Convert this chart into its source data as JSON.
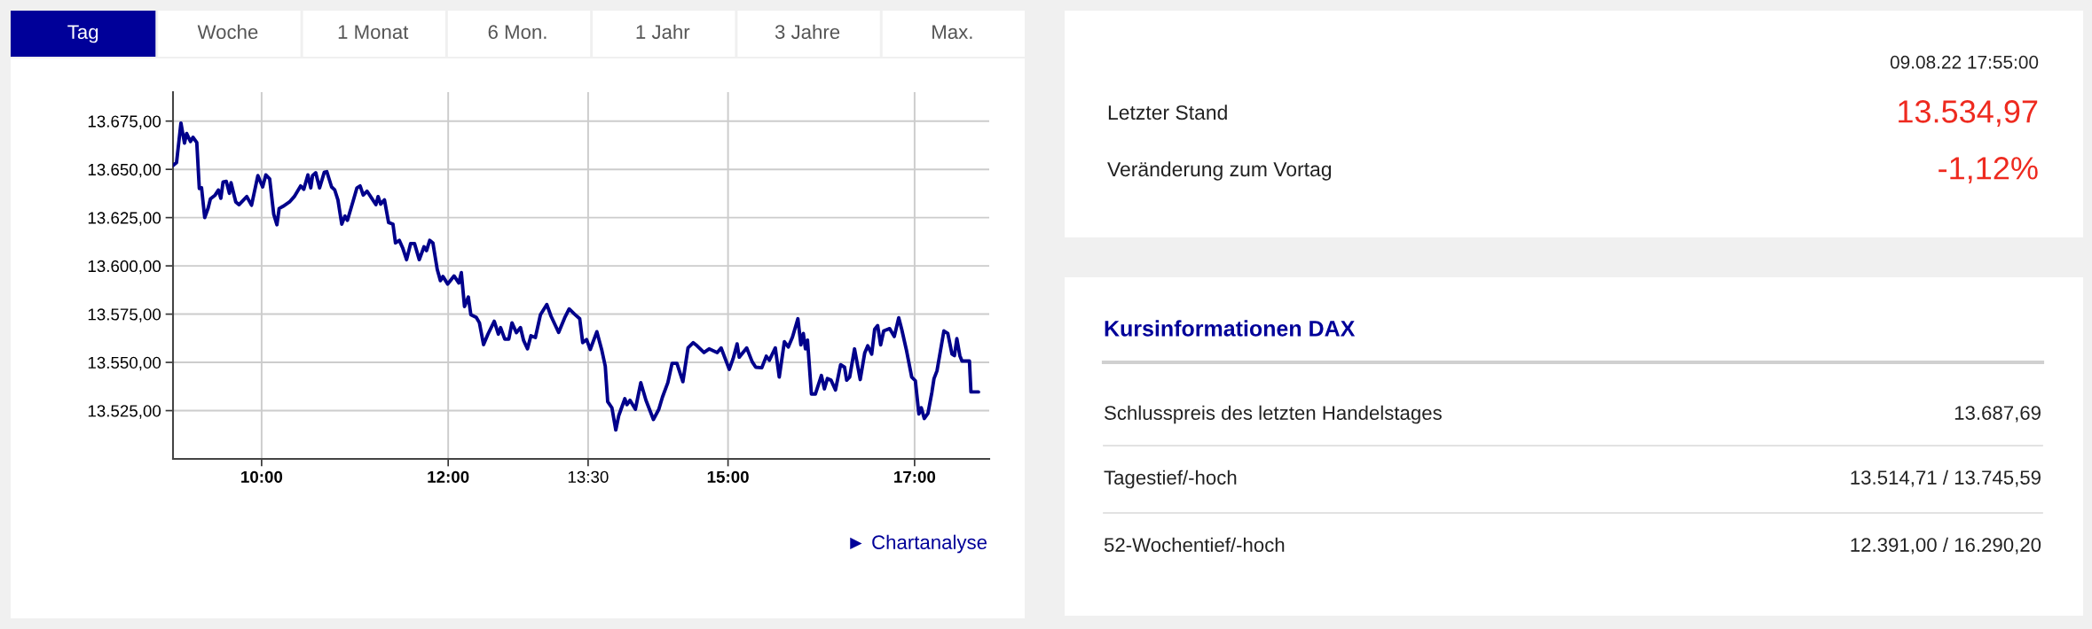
{
  "chart_data": [
    {
      "type": "other",
      "annotations": [
        "Tag",
        "Woche",
        "1 Monat",
        "6 Mon.",
        "1 Jahr",
        "3 Jahre",
        "Max."
      ]
    },
    {
      "type": "line",
      "x": [
        9.054,
        9.088,
        9.135,
        9.173,
        9.196,
        9.237,
        9.264,
        9.305,
        9.332,
        9.356,
        9.39,
        9.427,
        9.451,
        9.502,
        9.536,
        9.563,
        9.587,
        9.621,
        9.655,
        9.672,
        9.723,
        9.757,
        9.841,
        9.892,
        9.96,
        10.011,
        10.045,
        10.086,
        10.13,
        10.164,
        10.188,
        10.231,
        10.299,
        10.35,
        10.418,
        10.452,
        10.496,
        10.527,
        10.546,
        10.58,
        10.621,
        10.672,
        10.699,
        10.75,
        10.784,
        10.818,
        10.859,
        10.893,
        10.92,
        10.978,
        11.022,
        11.056,
        11.089,
        11.13,
        11.181,
        11.225,
        11.249,
        11.276,
        11.317,
        11.361,
        11.408,
        11.435,
        11.476,
        11.514,
        11.554,
        11.598,
        11.639,
        11.69,
        11.741,
        11.768,
        11.802,
        11.836,
        11.883,
        11.917,
        11.944,
        11.995,
        12.063,
        12.114,
        12.141,
        12.175,
        12.216,
        12.243,
        12.301,
        12.335,
        12.379,
        12.426,
        12.494,
        12.538,
        12.562,
        12.606,
        12.65,
        12.684,
        12.731,
        12.775,
        12.809,
        12.85,
        12.887,
        12.935,
        12.989,
        13.057,
        13.103,
        13.184,
        13.248,
        13.297,
        13.355,
        13.41,
        13.442,
        13.484,
        13.523,
        13.594,
        13.645,
        13.684,
        13.71,
        13.755,
        13.797,
        13.829,
        13.894,
        13.916,
        13.949,
        14.007,
        14.065,
        14.12,
        14.2,
        14.258,
        14.297,
        14.355,
        14.4,
        14.452,
        14.516,
        14.571,
        14.626,
        14.668,
        14.742,
        14.797,
        14.884,
        14.926,
        15.013,
        15.055,
        15.097,
        15.12,
        15.2,
        15.259,
        15.297,
        15.362,
        15.41,
        15.443,
        15.507,
        15.549,
        15.604,
        15.646,
        15.691,
        15.749,
        15.781,
        15.807,
        15.83,
        15.852,
        15.894,
        15.936,
        16.001,
        16.033,
        16.065,
        16.104,
        16.152,
        16.207,
        16.249,
        16.272,
        16.304,
        16.356,
        16.417,
        16.465,
        16.498,
        16.54,
        16.572,
        16.604,
        16.636,
        16.669,
        16.733,
        16.782,
        16.83,
        16.862,
        16.911,
        16.969,
        17.008,
        17.046,
        17.072,
        17.104,
        17.143,
        17.185,
        17.208,
        17.24,
        17.314,
        17.356,
        17.401,
        17.427,
        17.453,
        17.485,
        17.508,
        17.588,
        17.604,
        17.685
      ],
      "series": [
        {
          "color": "#00008b",
          "values": [
            13652.2,
            13653.5,
            13674,
            13663.6,
            13668.6,
            13664.4,
            13666.6,
            13663.9,
            13640.1,
            13640.4,
            13625,
            13630,
            13634.7,
            13636.7,
            13639.3,
            13635,
            13643.5,
            13643.8,
            13637.6,
            13643.1,
            13633.1,
            13631.7,
            13635.9,
            13631.4,
            13646.8,
            13640.9,
            13647.1,
            13645.1,
            13626.7,
            13621.3,
            13629.7,
            13630.9,
            13633.1,
            13635.9,
            13641.4,
            13639.7,
            13647.1,
            13640.4,
            13646.8,
            13648.2,
            13640.4,
            13648.5,
            13648.8,
            13640.9,
            13639.3,
            13634.2,
            13621.6,
            13625.8,
            13623.6,
            13633.1,
            13640.4,
            13641.4,
            13636.7,
            13638.7,
            13635,
            13631.7,
            13635.9,
            13632,
            13634.2,
            13622.5,
            13621.6,
            13611.9,
            13613.2,
            13609.1,
            13603.2,
            13611.6,
            13611.6,
            13603.2,
            13609.9,
            13607.9,
            13613.2,
            13611.9,
            13598.1,
            13592.3,
            13594.5,
            13590.6,
            13594.8,
            13591.1,
            13596.5,
            13578.9,
            13583.9,
            13574.7,
            13573.3,
            13570.5,
            13559.2,
            13564.6,
            13571.3,
            13564.6,
            13568,
            13562.1,
            13562.1,
            13570.5,
            13565.4,
            13568,
            13561.3,
            13557,
            13563.8,
            13562.9,
            13574.7,
            13580,
            13573.9,
            13565.5,
            13573,
            13577.7,
            13575,
            13572.6,
            13560.2,
            13561.8,
            13556.7,
            13565.9,
            13556.7,
            13548,
            13529.7,
            13526.5,
            13515,
            13522.5,
            13531.2,
            13528.1,
            13530.4,
            13525.7,
            13539.5,
            13530.4,
            13520.4,
            13525.7,
            13532,
            13539.5,
            13549.5,
            13549.5,
            13540,
            13557.5,
            13560.2,
            13558.6,
            13555.1,
            13557,
            13555.1,
            13557.5,
            13546.4,
            13552,
            13559.6,
            13552.7,
            13557.5,
            13550.3,
            13547.5,
            13547.2,
            13553.2,
            13551.1,
            13557.5,
            13542.4,
            13560.7,
            13558,
            13563.1,
            13572.6,
            13559.1,
            13565,
            13557,
            13561.5,
            13533.6,
            13533.6,
            13543.2,
            13536.3,
            13541.6,
            13540.8,
            13535.7,
            13548.8,
            13547.5,
            13540.8,
            13542.4,
            13557,
            13541.1,
            13554.8,
            13558.6,
            13554.3,
            13567.1,
            13569.1,
            13559.1,
            13566.3,
            13567.5,
            13563.4,
            13573.1,
            13567.1,
            13556.7,
            13542.4,
            13540.5,
            13523.3,
            13526.5,
            13520.9,
            13523.6,
            13534.4,
            13541.6,
            13545.6,
            13566.3,
            13565,
            13554.3,
            13553.5,
            13562.3,
            13553.5,
            13550.7,
            13550.7,
            13534.7,
            13534.7
          ]
        }
      ],
      "xlim": [
        9.05,
        17.8
      ],
      "xticks": [
        {
          "value": 10,
          "label": "10:00"
        },
        {
          "value": 12,
          "label": "12:00"
        },
        {
          "value": 13.5,
          "label": "13:30"
        },
        {
          "value": 15,
          "label": "15:00"
        },
        {
          "value": 17,
          "label": "17:00"
        }
      ],
      "ylim": [
        13500,
        13690
      ],
      "yticks": [
        {
          "value": 13525,
          "label": "13.525,00"
        },
        {
          "value": 13550,
          "label": "13.550,00"
        },
        {
          "value": 13575,
          "label": "13.575,00"
        },
        {
          "value": 13600,
          "label": "13.600,00"
        },
        {
          "value": 13625,
          "label": "13.625,00"
        },
        {
          "value": 13650,
          "label": "13.650,00"
        },
        {
          "value": 13675,
          "label": "13.675,00"
        }
      ],
      "grid": true,
      "line_style": "solid",
      "marker": "none",
      "annotations": [
        "► Chartanalyse"
      ]
    },
    {
      "type": "other",
      "annotations": [
        "09.08.22 17:55:00",
        "Letzter Stand",
        "13.534,97",
        "Veränderung zum Vortag",
        "-1,12%"
      ]
    },
    {
      "type": "other",
      "title": "Kursinformationen DAX",
      "annotations": [
        "Schlusspreis des letzten Handelstages",
        "13.687,69",
        "Tagestief/-hoch",
        "13.514,71 / 13.745,59",
        "52-Wochentief/-hoch",
        "12.391,00 / 16.290,20"
      ]
    }
  ]
}
